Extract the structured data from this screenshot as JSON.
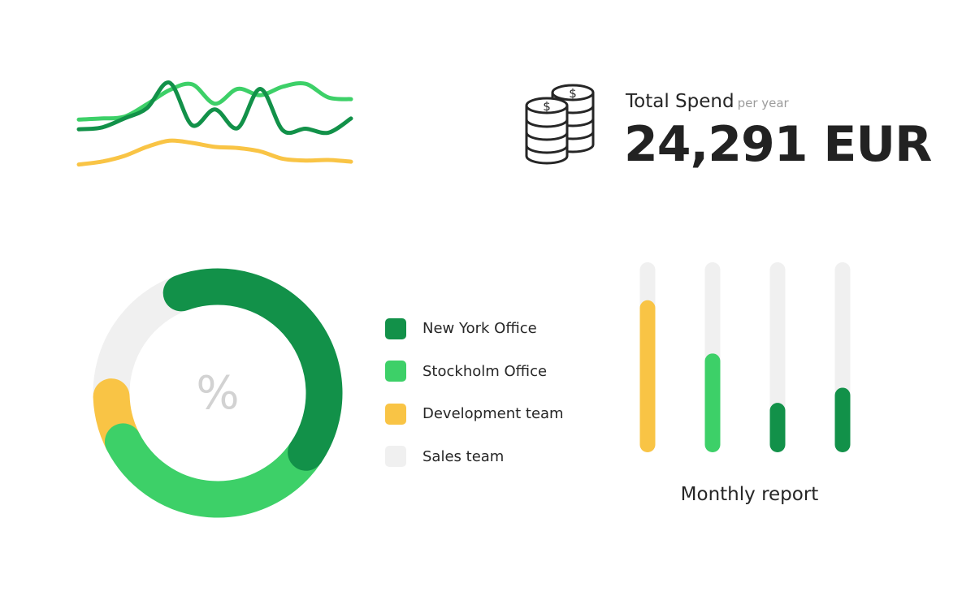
{
  "spend": {
    "title": "Total Spend",
    "subtitle": "per year",
    "value": "24,291 EUR",
    "icon": "coin-stack-icon"
  },
  "chart_data": [
    {
      "type": "line",
      "title": "",
      "axes": false,
      "grid": false,
      "series": [
        {
          "color": "#3dd068",
          "values": [
            3.1,
            3.3,
            3.6,
            5.8,
            8.3,
            9.3,
            5.9,
            8.5,
            7.4,
            8.9,
            9.4,
            7.0,
            6.7
          ]
        },
        {
          "color": "#129149",
          "values": [
            1.4,
            1.7,
            3.3,
            5.1,
            9.6,
            2.1,
            4.9,
            1.6,
            8.5,
            1.2,
            1.5,
            0.8,
            3.3
          ]
        },
        {
          "color": "#f9c445",
          "values": [
            -4.8,
            -4.3,
            -3.3,
            -1.7,
            -0.6,
            -1.0,
            -1.7,
            -1.9,
            -2.5,
            -3.8,
            -4.1,
            -4.0,
            -4.3
          ]
        }
      ]
    },
    {
      "type": "pie",
      "donut": true,
      "center_label": "%",
      "slices": [
        {
          "label": "New York Office",
          "value": 40,
          "color": "#129149"
        },
        {
          "label": "Stockholm Office",
          "value": 33,
          "color": "#3dd068"
        },
        {
          "label": "Development team",
          "value": 7,
          "color": "#f9c445"
        },
        {
          "label": "Sales team",
          "value": 20,
          "color": "#f0f0f0"
        }
      ],
      "legend": "right"
    },
    {
      "type": "bar",
      "title": "Monthly report",
      "ylim": [
        0,
        100
      ],
      "track_color": "#f0f0f0",
      "values": [
        80,
        52,
        26,
        34
      ],
      "colors": [
        "#f9c445",
        "#3dd068",
        "#129149",
        "#129149"
      ]
    }
  ]
}
